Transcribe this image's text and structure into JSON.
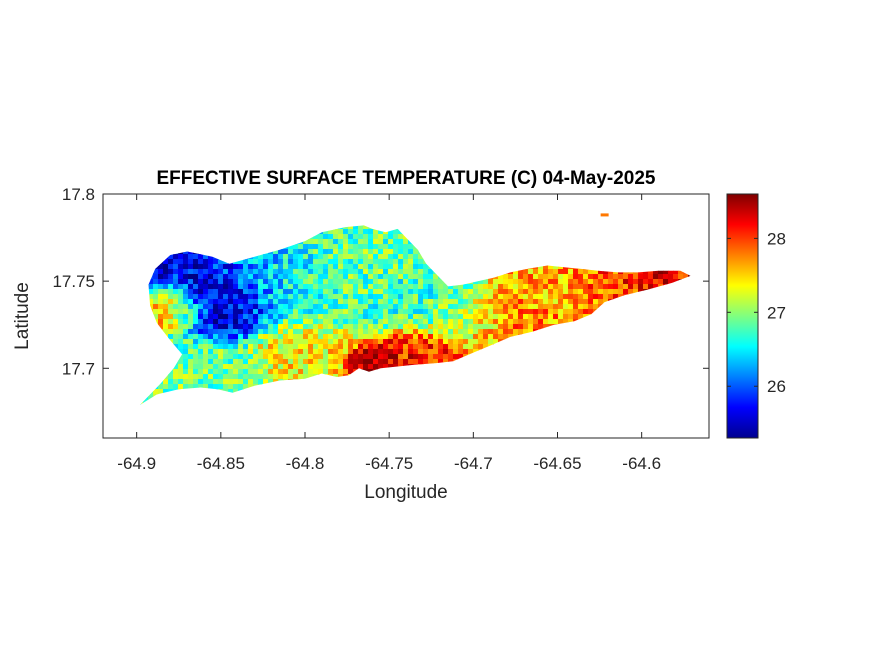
{
  "figure": {
    "title": "EFFECTIVE SURFACE TEMPERATURE (C) 04-May-2025"
  },
  "chart_data": {
    "type": "heatmap",
    "title": "EFFECTIVE SURFACE TEMPERATURE (C) 04-May-2025",
    "xlabel": "Longitude",
    "ylabel": "Latitude",
    "xlim": [
      -64.92,
      -64.56
    ],
    "ylim": [
      17.66,
      17.8
    ],
    "x_ticks": [
      -64.9,
      -64.85,
      -64.8,
      -64.75,
      -64.7,
      -64.65,
      -64.6
    ],
    "y_ticks": [
      17.7,
      17.75,
      17.8
    ],
    "x_tick_labels": [
      "-64.9",
      "-64.85",
      "-64.8",
      "-64.75",
      "-64.7",
      "-64.65",
      "-64.6"
    ],
    "y_tick_labels": [
      "17.7",
      "17.75",
      "17.8"
    ],
    "colorbar": {
      "colormap": "jet",
      "range": [
        25.3,
        28.6
      ],
      "ticks": [
        26,
        27,
        28
      ],
      "tick_labels": [
        "26",
        "27",
        "28"
      ]
    },
    "island_outline_lonlat": [
      [
        -64.898,
        17.679
      ],
      [
        -64.886,
        17.691
      ],
      [
        -64.878,
        17.7
      ],
      [
        -64.873,
        17.708
      ],
      [
        -64.88,
        17.716
      ],
      [
        -64.888,
        17.726
      ],
      [
        -64.892,
        17.736
      ],
      [
        -64.893,
        17.748
      ],
      [
        -64.889,
        17.757
      ],
      [
        -64.88,
        17.765
      ],
      [
        -64.87,
        17.767
      ],
      [
        -64.855,
        17.764
      ],
      [
        -64.845,
        17.76
      ],
      [
        -64.83,
        17.764
      ],
      [
        -64.815,
        17.768
      ],
      [
        -64.8,
        17.773
      ],
      [
        -64.79,
        17.778
      ],
      [
        -64.776,
        17.781
      ],
      [
        -64.765,
        17.782
      ],
      [
        -64.76,
        17.78
      ],
      [
        -64.752,
        17.778
      ],
      [
        -64.745,
        17.78
      ],
      [
        -64.74,
        17.775
      ],
      [
        -64.733,
        17.768
      ],
      [
        -64.728,
        17.76
      ],
      [
        -64.722,
        17.754
      ],
      [
        -64.715,
        17.747
      ],
      [
        -64.706,
        17.748
      ],
      [
        -64.697,
        17.75
      ],
      [
        -64.688,
        17.752
      ],
      [
        -64.678,
        17.755
      ],
      [
        -64.668,
        17.757
      ],
      [
        -64.656,
        17.759
      ],
      [
        -64.646,
        17.758
      ],
      [
        -64.636,
        17.757
      ],
      [
        -64.626,
        17.756
      ],
      [
        -64.614,
        17.755
      ],
      [
        -64.602,
        17.755
      ],
      [
        -64.59,
        17.756
      ],
      [
        -64.577,
        17.756
      ],
      [
        -64.571,
        17.753
      ],
      [
        -64.582,
        17.749
      ],
      [
        -64.597,
        17.745
      ],
      [
        -64.61,
        17.742
      ],
      [
        -64.622,
        17.738
      ],
      [
        -64.63,
        17.731
      ],
      [
        -64.64,
        17.727
      ],
      [
        -64.652,
        17.725
      ],
      [
        -64.665,
        17.721
      ],
      [
        -64.678,
        17.718
      ],
      [
        -64.69,
        17.713
      ],
      [
        -64.7,
        17.709
      ],
      [
        -64.712,
        17.704
      ],
      [
        -64.722,
        17.703
      ],
      [
        -64.735,
        17.702
      ],
      [
        -64.745,
        17.701
      ],
      [
        -64.755,
        17.7
      ],
      [
        -64.762,
        17.698
      ],
      [
        -64.768,
        17.7
      ],
      [
        -64.774,
        17.696
      ],
      [
        -64.781,
        17.695
      ],
      [
        -64.79,
        17.697
      ],
      [
        -64.8,
        17.694
      ],
      [
        -64.815,
        17.693
      ],
      [
        -64.83,
        17.69
      ],
      [
        -64.843,
        17.686
      ],
      [
        -64.852,
        17.688
      ],
      [
        -64.862,
        17.689
      ],
      [
        -64.875,
        17.688
      ],
      [
        -64.888,
        17.685
      ],
      [
        -64.898,
        17.679
      ]
    ],
    "temperature_zones": [
      {
        "center": [
          -64.858,
          17.748
        ],
        "radius_deg": 0.028,
        "value": 25.6
      },
      {
        "center": [
          -64.845,
          17.738
        ],
        "radius_deg": 0.02,
        "value": 25.5
      },
      {
        "center": [
          -64.825,
          17.752
        ],
        "radius_deg": 0.025,
        "value": 26.3
      },
      {
        "center": [
          -64.8,
          17.748
        ],
        "radius_deg": 0.03,
        "value": 26.7
      },
      {
        "center": [
          -64.77,
          17.752
        ],
        "radius_deg": 0.025,
        "value": 26.9
      },
      {
        "center": [
          -64.74,
          17.742
        ],
        "radius_deg": 0.022,
        "value": 26.7
      },
      {
        "center": [
          -64.715,
          17.733
        ],
        "radius_deg": 0.018,
        "value": 26.8
      },
      {
        "center": [
          -64.7,
          17.728
        ],
        "radius_deg": 0.02,
        "value": 27.1
      },
      {
        "center": [
          -64.88,
          17.735
        ],
        "radius_deg": 0.015,
        "value": 27.9
      },
      {
        "center": [
          -64.86,
          17.7
        ],
        "radius_deg": 0.02,
        "value": 26.9
      },
      {
        "center": [
          -64.8,
          17.712
        ],
        "radius_deg": 0.02,
        "value": 27.4
      },
      {
        "center": [
          -64.76,
          17.705
        ],
        "radius_deg": 0.01,
        "value": 28.5
      },
      {
        "center": [
          -64.73,
          17.708
        ],
        "radius_deg": 0.018,
        "value": 28.1
      },
      {
        "center": [
          -64.68,
          17.725
        ],
        "radius_deg": 0.022,
        "value": 27.9
      },
      {
        "center": [
          -64.65,
          17.742
        ],
        "radius_deg": 0.022,
        "value": 27.6
      },
      {
        "center": [
          -64.62,
          17.745
        ],
        "radius_deg": 0.018,
        "value": 28.0
      },
      {
        "center": [
          -64.59,
          17.752
        ],
        "radius_deg": 0.015,
        "value": 28.2
      }
    ],
    "islet": {
      "center": [
        -64.622,
        17.788
      ],
      "value": 27.8
    }
  }
}
